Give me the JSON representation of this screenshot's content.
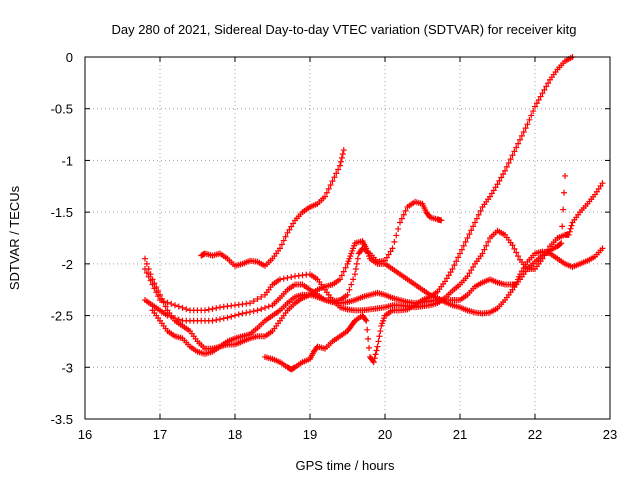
{
  "chart_data": {
    "type": "scatter",
    "marker": "+",
    "color": "#ff0000",
    "title": "Day 280 of 2021, Sidereal Day-to-day VTEC variation (SDTVAR) for receiver kitg",
    "xlabel": "GPS time / hours",
    "ylabel": "SDTVAR / TECUs",
    "xlim": [
      16,
      23
    ],
    "ylim": [
      -3.5,
      0
    ],
    "grid": true,
    "x_ticks": [
      "16",
      "17",
      "18",
      "19",
      "20",
      "21",
      "22",
      "23"
    ],
    "y_ticks": [
      "0",
      "-0.5",
      "-1",
      "-1.5",
      "-2",
      "-2.5",
      "-3",
      "-3.5"
    ],
    "series": [
      {
        "name": "trace-1",
        "points": [
          [
            16.8,
            -2.35
          ],
          [
            16.9,
            -2.4
          ],
          [
            17.0,
            -2.45
          ],
          [
            17.1,
            -2.5
          ],
          [
            17.3,
            -2.55
          ],
          [
            17.5,
            -2.55
          ],
          [
            17.7,
            -2.55
          ],
          [
            17.9,
            -2.52
          ],
          [
            18.1,
            -2.48
          ],
          [
            18.3,
            -2.45
          ],
          [
            18.5,
            -2.4
          ],
          [
            18.6,
            -2.33
          ],
          [
            18.7,
            -2.25
          ],
          [
            18.8,
            -2.2
          ],
          [
            18.9,
            -2.2
          ],
          [
            19.0,
            -2.25
          ],
          [
            19.1,
            -2.3
          ],
          [
            19.2,
            -2.35
          ],
          [
            19.3,
            -2.37
          ],
          [
            19.4,
            -2.38
          ],
          [
            19.5,
            -2.37
          ],
          [
            19.6,
            -2.35
          ],
          [
            19.7,
            -2.32
          ],
          [
            19.8,
            -2.3
          ],
          [
            19.9,
            -2.28
          ],
          [
            20.0,
            -2.3
          ],
          [
            20.1,
            -2.33
          ],
          [
            20.2,
            -2.35
          ],
          [
            20.3,
            -2.37
          ],
          [
            20.4,
            -2.38
          ],
          [
            20.5,
            -2.37
          ],
          [
            20.6,
            -2.36
          ],
          [
            20.7,
            -2.35
          ],
          [
            20.8,
            -2.35
          ],
          [
            20.9,
            -2.35
          ],
          [
            21.0,
            -2.35
          ],
          [
            21.1,
            -2.3
          ],
          [
            21.2,
            -2.22
          ],
          [
            21.3,
            -2.18
          ],
          [
            21.4,
            -2.15
          ],
          [
            21.5,
            -2.18
          ],
          [
            21.6,
            -2.2
          ],
          [
            21.7,
            -2.2
          ],
          [
            21.75,
            -2.2
          ],
          [
            21.8,
            -2.1
          ],
          [
            21.9,
            -1.98
          ],
          [
            22.0,
            -1.9
          ],
          [
            22.1,
            -1.88
          ],
          [
            22.2,
            -1.9
          ],
          [
            22.3,
            -1.95
          ],
          [
            22.4,
            -2.0
          ],
          [
            22.5,
            -2.03
          ],
          [
            22.6,
            -2.0
          ],
          [
            22.7,
            -1.97
          ],
          [
            22.8,
            -1.93
          ],
          [
            22.9,
            -1.85
          ]
        ]
      },
      {
        "name": "trace-2",
        "points": [
          [
            16.8,
            -2.05
          ],
          [
            16.9,
            -2.2
          ],
          [
            17.0,
            -2.35
          ],
          [
            17.2,
            -2.4
          ],
          [
            17.4,
            -2.45
          ],
          [
            17.6,
            -2.45
          ],
          [
            17.8,
            -2.42
          ],
          [
            18.0,
            -2.4
          ],
          [
            18.2,
            -2.38
          ],
          [
            18.4,
            -2.3
          ],
          [
            18.5,
            -2.2
          ],
          [
            18.6,
            -2.15
          ],
          [
            18.8,
            -2.12
          ],
          [
            19.0,
            -2.1
          ],
          [
            19.1,
            -2.15
          ],
          [
            19.2,
            -2.25
          ],
          [
            19.3,
            -2.35
          ],
          [
            19.4,
            -2.42
          ],
          [
            19.5,
            -2.44
          ],
          [
            19.6,
            -2.45
          ],
          [
            19.7,
            -2.45
          ],
          [
            19.8,
            -2.44
          ],
          [
            19.9,
            -2.43
          ],
          [
            20.0,
            -2.42
          ],
          [
            20.1,
            -2.4
          ],
          [
            20.2,
            -2.4
          ],
          [
            20.3,
            -2.41
          ],
          [
            20.4,
            -2.42
          ],
          [
            20.5,
            -2.41
          ],
          [
            20.6,
            -2.4
          ],
          [
            20.7,
            -2.38
          ],
          [
            20.8,
            -2.33
          ],
          [
            20.9,
            -2.26
          ],
          [
            21.0,
            -2.2
          ],
          [
            21.1,
            -2.12
          ],
          [
            21.2,
            -2.0
          ],
          [
            21.3,
            -1.9
          ],
          [
            21.4,
            -1.75
          ],
          [
            21.5,
            -1.68
          ],
          [
            21.6,
            -1.72
          ],
          [
            21.7,
            -1.82
          ],
          [
            21.8,
            -1.96
          ],
          [
            21.9,
            -2.05
          ],
          [
            22.0,
            -2.05
          ],
          [
            22.1,
            -1.95
          ],
          [
            22.2,
            -1.83
          ],
          [
            22.3,
            -1.75
          ],
          [
            22.4,
            -1.72
          ],
          [
            22.45,
            -1.72
          ],
          [
            22.5,
            -1.6
          ],
          [
            22.6,
            -1.5
          ],
          [
            22.7,
            -1.42
          ],
          [
            22.8,
            -1.33
          ],
          [
            22.9,
            -1.22
          ]
        ]
      },
      {
        "name": "trace-3",
        "points": [
          [
            16.8,
            -1.95
          ],
          [
            16.9,
            -2.15
          ],
          [
            17.0,
            -2.3
          ],
          [
            17.1,
            -2.45
          ],
          [
            17.2,
            -2.55
          ],
          [
            17.3,
            -2.6
          ],
          [
            17.4,
            -2.65
          ],
          [
            17.5,
            -2.75
          ],
          [
            17.6,
            -2.82
          ],
          [
            17.7,
            -2.82
          ],
          [
            17.8,
            -2.8
          ],
          [
            17.9,
            -2.75
          ],
          [
            18.0,
            -2.72
          ],
          [
            18.1,
            -2.7
          ],
          [
            18.2,
            -2.68
          ],
          [
            18.3,
            -2.62
          ],
          [
            18.4,
            -2.55
          ],
          [
            18.5,
            -2.5
          ],
          [
            18.6,
            -2.45
          ],
          [
            18.7,
            -2.38
          ],
          [
            18.8,
            -2.32
          ],
          [
            18.9,
            -2.3
          ],
          [
            19.0,
            -2.3
          ],
          [
            19.1,
            -2.32
          ],
          [
            19.2,
            -2.35
          ],
          [
            19.3,
            -2.36
          ],
          [
            19.4,
            -2.35
          ],
          [
            19.5,
            -2.3
          ],
          [
            19.6,
            -2.1
          ],
          [
            19.65,
            -1.9
          ],
          [
            19.7,
            -1.85
          ],
          [
            19.8,
            -1.9
          ],
          [
            19.9,
            -1.98
          ],
          [
            20.0,
            -1.97
          ],
          [
            20.1,
            -1.85
          ],
          [
            20.2,
            -1.6
          ],
          [
            20.3,
            -1.45
          ],
          [
            20.4,
            -1.4
          ],
          [
            20.5,
            -1.42
          ],
          [
            20.55,
            -1.5
          ],
          [
            20.6,
            -1.55
          ],
          [
            20.7,
            -1.57
          ],
          [
            20.75,
            -1.58
          ]
        ]
      },
      {
        "name": "trace-4",
        "points": [
          [
            16.9,
            -2.45
          ],
          [
            17.0,
            -2.55
          ],
          [
            17.1,
            -2.65
          ],
          [
            17.2,
            -2.7
          ],
          [
            17.3,
            -2.72
          ],
          [
            17.4,
            -2.8
          ],
          [
            17.5,
            -2.85
          ],
          [
            17.6,
            -2.87
          ],
          [
            17.7,
            -2.85
          ],
          [
            17.8,
            -2.8
          ],
          [
            17.9,
            -2.78
          ],
          [
            18.0,
            -2.78
          ],
          [
            18.1,
            -2.75
          ],
          [
            18.2,
            -2.72
          ],
          [
            18.3,
            -2.7
          ],
          [
            18.4,
            -2.7
          ],
          [
            18.5,
            -2.65
          ],
          [
            18.6,
            -2.55
          ],
          [
            18.7,
            -2.45
          ],
          [
            18.8,
            -2.38
          ],
          [
            18.9,
            -2.33
          ],
          [
            19.0,
            -2.3
          ],
          [
            19.1,
            -2.25
          ],
          [
            19.2,
            -2.22
          ],
          [
            19.3,
            -2.2
          ],
          [
            19.4,
            -2.15
          ],
          [
            19.5,
            -2.0
          ],
          [
            19.55,
            -1.9
          ],
          [
            19.6,
            -1.8
          ],
          [
            19.7,
            -1.78
          ],
          [
            19.75,
            -1.85
          ],
          [
            19.8,
            -1.95
          ],
          [
            19.9,
            -2.0
          ],
          [
            20.0,
            -2.0
          ],
          [
            20.1,
            -2.05
          ],
          [
            20.2,
            -2.1
          ],
          [
            20.3,
            -2.15
          ],
          [
            20.4,
            -2.2
          ],
          [
            20.5,
            -2.25
          ],
          [
            20.6,
            -2.3
          ],
          [
            20.7,
            -2.33
          ],
          [
            20.8,
            -2.37
          ],
          [
            20.9,
            -2.4
          ],
          [
            21.0,
            -2.42
          ],
          [
            21.1,
            -2.45
          ],
          [
            21.2,
            -2.47
          ],
          [
            21.3,
            -2.48
          ],
          [
            21.4,
            -2.47
          ],
          [
            21.5,
            -2.43
          ],
          [
            21.6,
            -2.35
          ],
          [
            21.7,
            -2.25
          ],
          [
            21.8,
            -2.15
          ],
          [
            21.9,
            -2.05
          ],
          [
            22.0,
            -1.98
          ],
          [
            22.1,
            -1.92
          ],
          [
            22.2,
            -1.87
          ],
          [
            22.3,
            -1.83
          ],
          [
            22.35,
            -1.8
          ],
          [
            22.4,
            -1.15
          ]
        ]
      },
      {
        "name": "trace-5",
        "points": [
          [
            17.55,
            -1.92
          ],
          [
            17.6,
            -1.9
          ],
          [
            17.7,
            -1.92
          ],
          [
            17.8,
            -1.9
          ],
          [
            17.9,
            -1.95
          ],
          [
            18.0,
            -2.02
          ],
          [
            18.1,
            -2.0
          ],
          [
            18.2,
            -1.97
          ],
          [
            18.3,
            -1.98
          ],
          [
            18.4,
            -2.02
          ],
          [
            18.5,
            -1.95
          ],
          [
            18.6,
            -1.85
          ],
          [
            18.7,
            -1.7
          ],
          [
            18.8,
            -1.58
          ],
          [
            18.9,
            -1.5
          ],
          [
            19.0,
            -1.45
          ],
          [
            19.1,
            -1.42
          ],
          [
            19.2,
            -1.35
          ],
          [
            19.3,
            -1.2
          ],
          [
            19.4,
            -1.05
          ],
          [
            19.45,
            -0.9
          ]
        ]
      },
      {
        "name": "trace-6",
        "points": [
          [
            18.4,
            -2.9
          ],
          [
            18.5,
            -2.92
          ],
          [
            18.6,
            -2.95
          ],
          [
            18.7,
            -3.0
          ],
          [
            18.75,
            -3.02
          ],
          [
            18.8,
            -3.0
          ],
          [
            18.9,
            -2.95
          ],
          [
            19.0,
            -2.92
          ],
          [
            19.05,
            -2.85
          ],
          [
            19.1,
            -2.8
          ],
          [
            19.2,
            -2.82
          ],
          [
            19.3,
            -2.75
          ],
          [
            19.4,
            -2.7
          ],
          [
            19.5,
            -2.65
          ],
          [
            19.55,
            -2.6
          ],
          [
            19.6,
            -2.55
          ],
          [
            19.7,
            -2.5
          ],
          [
            19.75,
            -2.55
          ],
          [
            19.8,
            -2.9
          ],
          [
            19.85,
            -2.95
          ],
          [
            19.9,
            -2.8
          ],
          [
            19.95,
            -2.6
          ],
          [
            20.0,
            -2.5
          ],
          [
            20.1,
            -2.45
          ],
          [
            20.2,
            -2.45
          ],
          [
            20.3,
            -2.44
          ],
          [
            20.4,
            -2.4
          ],
          [
            20.5,
            -2.35
          ],
          [
            20.6,
            -2.32
          ],
          [
            20.7,
            -2.27
          ],
          [
            20.8,
            -2.17
          ],
          [
            20.9,
            -2.05
          ],
          [
            21.0,
            -1.9
          ],
          [
            21.1,
            -1.75
          ],
          [
            21.2,
            -1.6
          ],
          [
            21.3,
            -1.45
          ],
          [
            21.4,
            -1.35
          ],
          [
            21.5,
            -1.23
          ],
          [
            21.6,
            -1.1
          ],
          [
            21.7,
            -0.95
          ],
          [
            21.8,
            -0.8
          ],
          [
            21.9,
            -0.65
          ],
          [
            22.0,
            -0.48
          ],
          [
            22.1,
            -0.35
          ],
          [
            22.2,
            -0.22
          ],
          [
            22.3,
            -0.12
          ],
          [
            22.4,
            -0.04
          ],
          [
            22.5,
            0.0
          ]
        ]
      }
    ]
  }
}
